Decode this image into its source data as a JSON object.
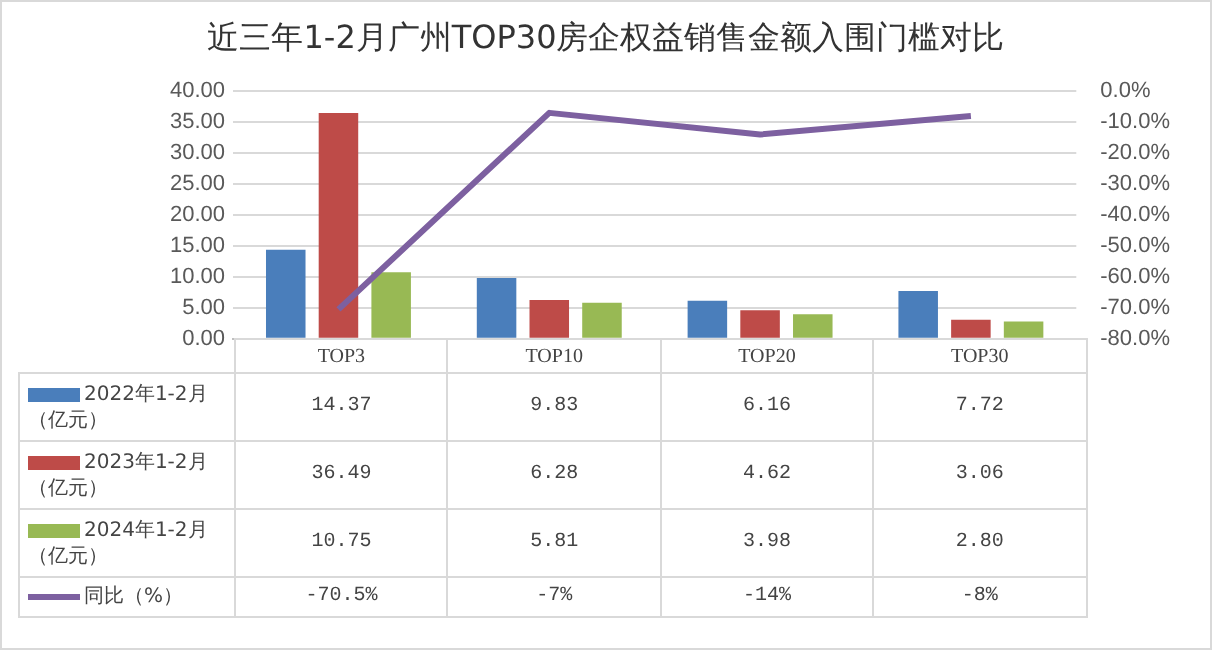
{
  "chart_data": {
    "type": "bar",
    "title": "近三年1-2月广州TOP30房企权益销售金额入围门槛对比",
    "categories": [
      "TOP3",
      "TOP10",
      "TOP20",
      "TOP30"
    ],
    "series": [
      {
        "name": "2022年1-2月（亿元）",
        "color": "#4a7ebb",
        "values": [
          14.37,
          9.83,
          6.16,
          7.72
        ],
        "value_labels": [
          "14.37",
          "9.83",
          "6.16",
          "7.72"
        ]
      },
      {
        "name": "2023年1-2月（亿元）",
        "color": "#be4b48",
        "values": [
          36.49,
          6.28,
          4.62,
          3.06
        ],
        "value_labels": [
          "36.49",
          "6.28",
          "4.62",
          "3.06"
        ]
      },
      {
        "name": "2024年1-2月（亿元）",
        "color": "#98b954",
        "values": [
          10.75,
          5.81,
          3.98,
          2.8
        ],
        "value_labels": [
          "10.75",
          "5.81",
          "3.98",
          "2.80"
        ]
      },
      {
        "name": "同比（%）",
        "type": "line",
        "axis": "y2",
        "color": "#7d60a0",
        "values": [
          -70.5,
          -7,
          -14,
          -8
        ],
        "value_labels": [
          "-70.5%",
          "-7%",
          "-14%",
          "-8%"
        ]
      }
    ],
    "ylim": [
      0,
      40
    ],
    "yticks": [
      {
        "value": 0,
        "label": "0.00"
      },
      {
        "value": 5,
        "label": "5.00"
      },
      {
        "value": 10,
        "label": "10.00"
      },
      {
        "value": 15,
        "label": "15.00"
      },
      {
        "value": 20,
        "label": "20.00"
      },
      {
        "value": 25,
        "label": "25.00"
      },
      {
        "value": 30,
        "label": "30.00"
      },
      {
        "value": 35,
        "label": "35.00"
      },
      {
        "value": 40,
        "label": "40.00"
      }
    ],
    "y2lim": [
      -80,
      0
    ],
    "y2ticks": [
      {
        "value": 0,
        "label": "0.0%"
      },
      {
        "value": -10,
        "label": "-10.0%"
      },
      {
        "value": -20,
        "label": "-20.0%"
      },
      {
        "value": -30,
        "label": "-30.0%"
      },
      {
        "value": -40,
        "label": "-40.0%"
      },
      {
        "value": -50,
        "label": "-50.0%"
      },
      {
        "value": -60,
        "label": "-60.0%"
      },
      {
        "value": -70,
        "label": "-70.0%"
      },
      {
        "value": -80,
        "label": "-80.0%"
      }
    ],
    "grid": "y",
    "legend": "bottom",
    "marker": "none"
  }
}
